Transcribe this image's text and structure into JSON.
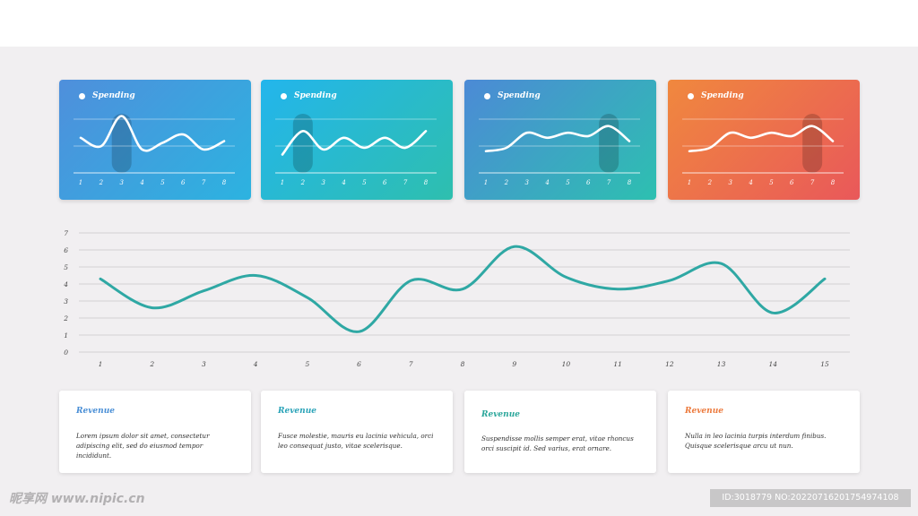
{
  "colors": {
    "accent_teal": "#2fa8a4",
    "accent_orange": "#ec7a3d",
    "label_blue": "#4a8fd6"
  },
  "cards": [
    {
      "label": "Spending",
      "gradient": [
        "#4f8fdc",
        "#2cb3e0"
      ],
      "highlight_x": 3,
      "x": [
        1,
        2,
        3,
        4,
        5,
        6,
        7,
        8
      ],
      "values": [
        4.2,
        3.2,
        6.8,
        2.8,
        3.6,
        4.6,
        2.8,
        3.8
      ]
    },
    {
      "label": "Spending",
      "gradient": [
        "#23b5ec",
        "#2ebfae"
      ],
      "highlight_x": 2,
      "x": [
        1,
        2,
        3,
        4,
        5,
        6,
        7,
        8
      ],
      "values": [
        2.2,
        5.0,
        2.8,
        4.2,
        3.0,
        4.2,
        3.0,
        5.0
      ]
    },
    {
      "label": "Spending",
      "gradient": [
        "#4c8ad6",
        "#2dc0b0"
      ],
      "highlight_x": 7,
      "x": [
        1,
        2,
        3,
        4,
        5,
        6,
        7,
        8
      ],
      "values": [
        2.6,
        3.0,
        4.8,
        4.2,
        4.8,
        4.4,
        5.6,
        3.8
      ]
    },
    {
      "label": "Spending",
      "gradient": [
        "#f0883e",
        "#e9585a"
      ],
      "highlight_x": 7,
      "x": [
        1,
        2,
        3,
        4,
        5,
        6,
        7,
        8
      ],
      "values": [
        2.6,
        3.0,
        4.8,
        4.2,
        4.8,
        4.4,
        5.6,
        3.8
      ]
    }
  ],
  "chart_data": {
    "type": "line",
    "x": [
      1,
      2,
      3,
      4,
      5,
      6,
      7,
      8,
      9,
      10,
      11,
      12,
      13,
      14,
      15
    ],
    "series": [
      {
        "values": [
          4.3,
          2.6,
          3.6,
          4.5,
          3.2,
          1.2,
          4.2,
          3.7,
          6.2,
          4.4,
          3.7,
          4.2,
          5.2,
          2.3,
          4.3
        ]
      }
    ],
    "y_ticks": [
      0,
      1,
      2,
      3,
      4,
      5,
      6,
      7
    ],
    "ylim": [
      0,
      7
    ],
    "grid": true,
    "line_color": "#2fa8a4"
  },
  "info_cards": [
    {
      "title": "Revenue",
      "title_color": "#4a8fd6",
      "text": "Lorem ipsum dolor sit amet, consectetur adipiscing elit, sed do eiusmod tempor incididunt."
    },
    {
      "title": "Revenue",
      "title_color": "#2aa3b8",
      "text": "Fusce molestie, mauris eu lacinia vehicula, orci leo consequat justo, vitae scelerisque."
    },
    {
      "title": "Revenue",
      "title_color": "#2aa69a",
      "text": "Suspendisse mollis semper erat, vitae rhoncus orci suscipit id. Sed varius, erat ornare."
    },
    {
      "title": "Revenue",
      "title_color": "#ec7a3d",
      "text": "Nulla in leo lacinia turpis interdum finibus. Quisque scelerisque arcu ut nun."
    }
  ],
  "watermark": {
    "left": "昵享网 www.nipic.cn",
    "right": "ID:3018779 NO:20220716201754974108"
  }
}
